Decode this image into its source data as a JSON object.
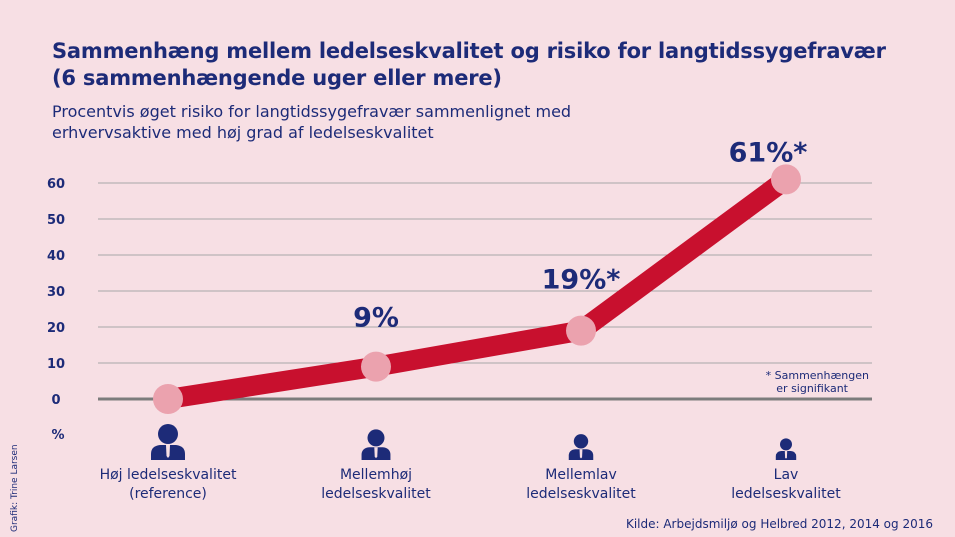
{
  "title": {
    "line1": "Sammenhæng mellem ledelseskvalitet og risiko for langtidssygefravær",
    "line2": "(6 sammenhængende uger eller mere)"
  },
  "subtitle": {
    "line1": "Procentvis øget risiko for langtidssygefravær sammenlignet med",
    "line2": "erhvervsaktive med høj grad af ledelseskvalitet"
  },
  "chart_data": {
    "type": "line",
    "title": "Sammenhæng mellem ledelseskvalitet og risiko for langtidssygefravær (6 sammenhængende uger eller mere)",
    "ylabel": "%",
    "ylim": [
      0,
      60
    ],
    "yticks": [
      "60",
      "50",
      "40",
      "30",
      "20",
      "10",
      "0"
    ],
    "categories": [
      [
        "Høj ledelseskvalitet",
        "(reference)"
      ],
      [
        "Mellemhøj",
        "ledelseskvalitet"
      ],
      [
        "Mellemlav",
        "ledelseskvalitet"
      ],
      [
        "Lav",
        "ledelseskvalitet"
      ]
    ],
    "values": [
      0,
      9,
      19,
      61
    ],
    "data_labels": [
      "",
      "9%",
      "19%*",
      "61%*"
    ],
    "note": [
      "* Sammenhængen",
      "er signifikant"
    ],
    "colors": {
      "line": "#c8102e",
      "marker": "#eba2ae",
      "text": "#1d2b78",
      "grid": "#a7a7a7",
      "baseline": "#7c7c7c"
    }
  },
  "source": "Kilde: Arbejdsmiljø og Helbred 2012, 2014 og 2016",
  "credit": "Grafik: Trine Larsen"
}
